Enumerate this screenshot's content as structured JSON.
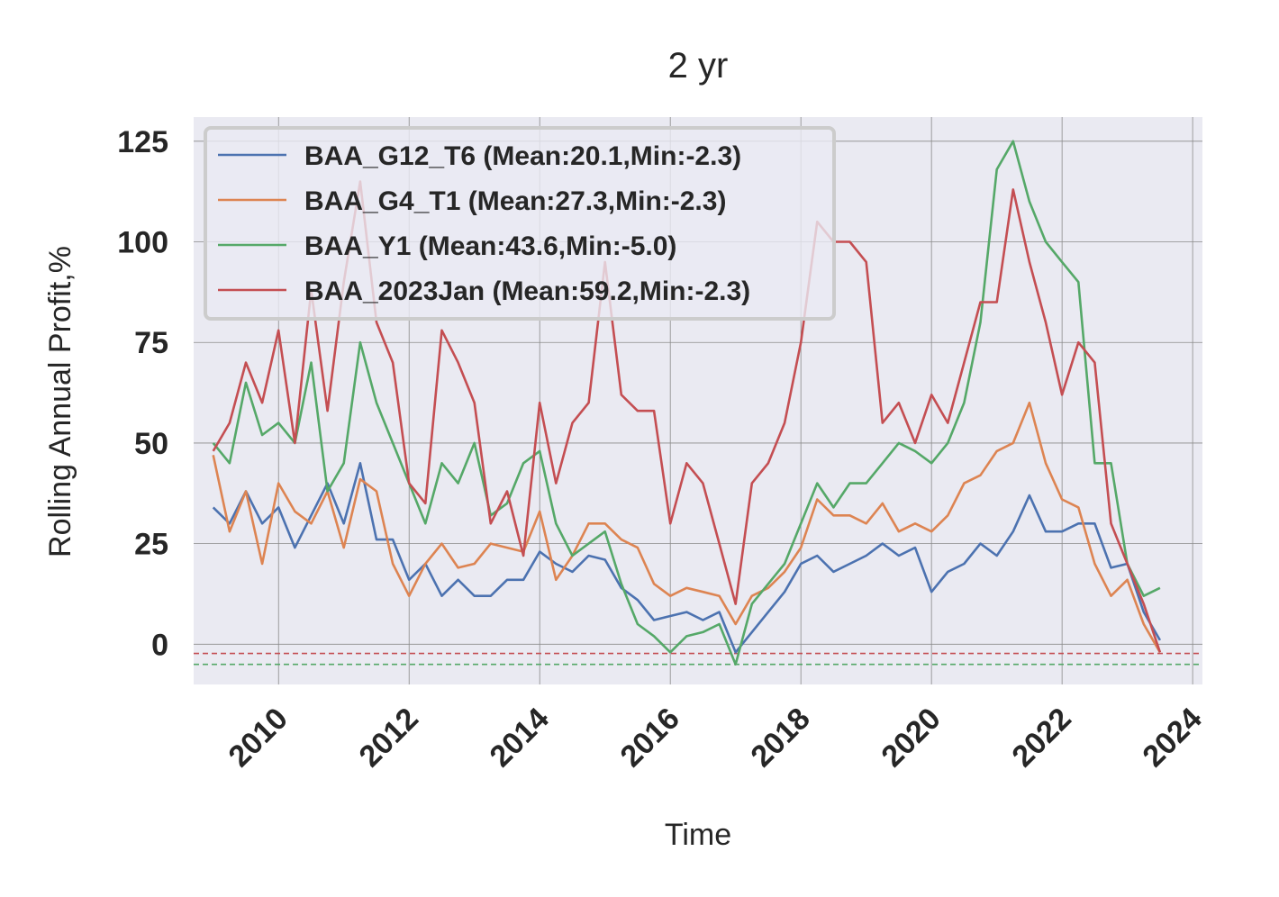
{
  "chart_data": {
    "type": "line",
    "title": "2 yr",
    "xlabel": "Time",
    "ylabel": "Rolling Annual Profit,%",
    "xlim": [
      2008.7,
      2024.15
    ],
    "ylim": [
      -10,
      131
    ],
    "xticks": [
      "2010",
      "2012",
      "2014",
      "2016",
      "2018",
      "2020",
      "2022",
      "2024"
    ],
    "yticks": [
      "0",
      "25",
      "50",
      "75",
      "100",
      "125"
    ],
    "grid": true,
    "legend_position": "top-left",
    "background_color": "#eaeaf2",
    "reference_lines": [
      {
        "y": -2.3,
        "color": "#c44e52",
        "style": "dashed"
      },
      {
        "y": -5.0,
        "color": "#55a868",
        "style": "dashed"
      }
    ],
    "series": [
      {
        "name": "BAA_G12_T6 (Mean:20.1,Min:-2.3)",
        "color": "#4c72b0",
        "x": [
          2009.0,
          2009.25,
          2009.5,
          2009.75,
          2010.0,
          2010.25,
          2010.5,
          2010.75,
          2011.0,
          2011.25,
          2011.5,
          2011.75,
          2012.0,
          2012.25,
          2012.5,
          2012.75,
          2013.0,
          2013.25,
          2013.5,
          2013.75,
          2014.0,
          2014.25,
          2014.5,
          2014.75,
          2015.0,
          2015.25,
          2015.5,
          2015.75,
          2016.0,
          2016.25,
          2016.5,
          2016.75,
          2017.0,
          2017.25,
          2017.5,
          2017.75,
          2018.0,
          2018.25,
          2018.5,
          2018.75,
          2019.0,
          2019.25,
          2019.5,
          2019.75,
          2020.0,
          2020.25,
          2020.5,
          2020.75,
          2021.0,
          2021.25,
          2021.5,
          2021.75,
          2022.0,
          2022.25,
          2022.5,
          2022.75,
          2023.0,
          2023.25,
          2023.5
        ],
        "values": [
          34,
          30,
          38,
          30,
          34,
          24,
          32,
          40,
          30,
          45,
          26,
          26,
          16,
          20,
          12,
          16,
          12,
          12,
          16,
          16,
          23,
          20,
          18,
          22,
          21,
          14,
          11,
          6,
          7,
          8,
          6,
          8,
          -2,
          3,
          8,
          13,
          20,
          22,
          18,
          20,
          22,
          25,
          22,
          24,
          13,
          18,
          20,
          25,
          22,
          28,
          37,
          28,
          28,
          30,
          30,
          19,
          20,
          8,
          1
        ]
      },
      {
        "name": "BAA_G4_T1 (Mean:27.3,Min:-2.3)",
        "color": "#dd8452",
        "x": [
          2009.0,
          2009.25,
          2009.5,
          2009.75,
          2010.0,
          2010.25,
          2010.5,
          2010.75,
          2011.0,
          2011.25,
          2011.5,
          2011.75,
          2012.0,
          2012.25,
          2012.5,
          2012.75,
          2013.0,
          2013.25,
          2013.5,
          2013.75,
          2014.0,
          2014.25,
          2014.5,
          2014.75,
          2015.0,
          2015.25,
          2015.5,
          2015.75,
          2016.0,
          2016.25,
          2016.5,
          2016.75,
          2017.0,
          2017.25,
          2017.5,
          2017.75,
          2018.0,
          2018.25,
          2018.5,
          2018.75,
          2019.0,
          2019.25,
          2019.5,
          2019.75,
          2020.0,
          2020.25,
          2020.5,
          2020.75,
          2021.0,
          2021.25,
          2021.5,
          2021.75,
          2022.0,
          2022.25,
          2022.5,
          2022.75,
          2023.0,
          2023.25,
          2023.5
        ],
        "values": [
          47,
          28,
          38,
          20,
          40,
          33,
          30,
          38,
          24,
          41,
          38,
          20,
          12,
          20,
          25,
          19,
          20,
          25,
          24,
          23,
          33,
          16,
          22,
          30,
          30,
          26,
          24,
          15,
          12,
          14,
          13,
          12,
          5,
          12,
          14,
          18,
          24,
          36,
          32,
          32,
          30,
          35,
          28,
          30,
          28,
          32,
          40,
          42,
          48,
          50,
          60,
          45,
          36,
          34,
          20,
          12,
          16,
          5,
          -2
        ]
      },
      {
        "name": "BAA_Y1 (Mean:43.6,Min:-5.0)",
        "color": "#55a868",
        "x": [
          2009.0,
          2009.25,
          2009.5,
          2009.75,
          2010.0,
          2010.25,
          2010.5,
          2010.75,
          2011.0,
          2011.25,
          2011.5,
          2011.75,
          2012.0,
          2012.25,
          2012.5,
          2012.75,
          2013.0,
          2013.25,
          2013.5,
          2013.75,
          2014.0,
          2014.25,
          2014.5,
          2014.75,
          2015.0,
          2015.25,
          2015.5,
          2015.75,
          2016.0,
          2016.25,
          2016.5,
          2016.75,
          2017.0,
          2017.25,
          2017.5,
          2017.75,
          2018.0,
          2018.25,
          2018.5,
          2018.75,
          2019.0,
          2019.25,
          2019.5,
          2019.75,
          2020.0,
          2020.25,
          2020.5,
          2020.75,
          2021.0,
          2021.25,
          2021.5,
          2021.75,
          2022.0,
          2022.25,
          2022.5,
          2022.75,
          2023.0,
          2023.25,
          2023.5
        ],
        "values": [
          50,
          45,
          65,
          52,
          55,
          50,
          70,
          38,
          45,
          75,
          60,
          50,
          40,
          30,
          45,
          40,
          50,
          32,
          35,
          45,
          48,
          30,
          22,
          25,
          28,
          15,
          5,
          2,
          -2,
          2,
          3,
          5,
          -5,
          10,
          15,
          20,
          30,
          40,
          34,
          40,
          40,
          45,
          50,
          48,
          45,
          50,
          60,
          80,
          118,
          125,
          110,
          100,
          95,
          90,
          45,
          45,
          20,
          12,
          14
        ]
      },
      {
        "name": "BAA_2023Jan (Mean:59.2,Min:-2.3)",
        "color": "#c44e52",
        "x": [
          2009.0,
          2009.25,
          2009.5,
          2009.75,
          2010.0,
          2010.25,
          2010.5,
          2010.75,
          2011.0,
          2011.25,
          2011.5,
          2011.75,
          2012.0,
          2012.25,
          2012.5,
          2012.75,
          2013.0,
          2013.25,
          2013.5,
          2013.75,
          2014.0,
          2014.25,
          2014.5,
          2014.75,
          2015.0,
          2015.25,
          2015.5,
          2015.75,
          2016.0,
          2016.25,
          2016.5,
          2016.75,
          2017.0,
          2017.25,
          2017.5,
          2017.75,
          2018.0,
          2018.25,
          2018.5,
          2018.75,
          2019.0,
          2019.25,
          2019.5,
          2019.75,
          2020.0,
          2020.25,
          2020.5,
          2020.75,
          2021.0,
          2021.25,
          2021.5,
          2021.75,
          2022.0,
          2022.25,
          2022.5,
          2022.75,
          2023.0,
          2023.25,
          2023.5
        ],
        "values": [
          48,
          55,
          70,
          60,
          78,
          50,
          88,
          58,
          90,
          115,
          80,
          70,
          40,
          35,
          78,
          70,
          60,
          30,
          38,
          22,
          60,
          40,
          55,
          60,
          95,
          62,
          58,
          58,
          30,
          45,
          40,
          25,
          10,
          40,
          45,
          55,
          75,
          105,
          100,
          100,
          95,
          55,
          60,
          50,
          62,
          55,
          70,
          85,
          85,
          113,
          95,
          80,
          62,
          75,
          70,
          30,
          20,
          10,
          -2
        ]
      }
    ]
  }
}
